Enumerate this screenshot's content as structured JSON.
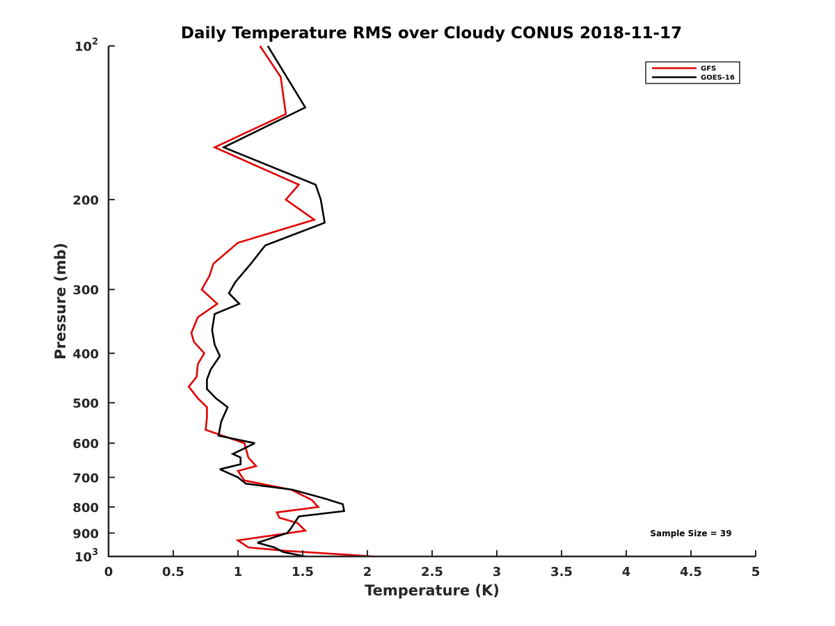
{
  "chart_data": {
    "type": "line",
    "title": "Daily Temperature RMS over Cloudy CONUS 2018-11-17",
    "xlabel": "Temperature (K)",
    "ylabel": "Pressure (mb)",
    "xlim": [
      0,
      5
    ],
    "ylim": [
      100,
      1000
    ],
    "y_scale": "log",
    "y_reversed": true,
    "grid": false,
    "x_ticks": [
      0,
      0.5,
      1,
      1.5,
      2,
      2.5,
      3,
      3.5,
      4,
      4.5,
      5
    ],
    "x_tick_labels": [
      "0",
      "0.5",
      "1",
      "1.5",
      "2",
      "2.5",
      "3",
      "3.5",
      "4",
      "4.5",
      "5"
    ],
    "y_ticks": [
      {
        "value": 100,
        "base": "10",
        "exp": "2"
      },
      {
        "value": 200,
        "label": "200"
      },
      {
        "value": 300,
        "label": "300"
      },
      {
        "value": 400,
        "label": "400"
      },
      {
        "value": 500,
        "label": "500"
      },
      {
        "value": 600,
        "label": "600"
      },
      {
        "value": 700,
        "label": "700"
      },
      {
        "value": 800,
        "label": "800"
      },
      {
        "value": 900,
        "label": "900"
      },
      {
        "value": 1000,
        "base": "10",
        "exp": "3"
      }
    ],
    "legend_position": "top-right",
    "annotation": "Sample Size = 39",
    "series": [
      {
        "name": "GFS",
        "color": "#e00000",
        "points": [
          [
            1.17,
            100
          ],
          [
            1.33,
            115
          ],
          [
            1.37,
            136
          ],
          [
            0.82,
            158
          ],
          [
            1.47,
            187
          ],
          [
            1.37,
            200
          ],
          [
            1.59,
            219
          ],
          [
            1.0,
            243
          ],
          [
            0.81,
            267
          ],
          [
            0.78,
            282
          ],
          [
            0.72,
            300
          ],
          [
            0.84,
            320
          ],
          [
            0.69,
            340
          ],
          [
            0.64,
            365
          ],
          [
            0.66,
            380
          ],
          [
            0.74,
            400
          ],
          [
            0.69,
            420
          ],
          [
            0.68,
            445
          ],
          [
            0.62,
            465
          ],
          [
            0.69,
            490
          ],
          [
            0.76,
            510
          ],
          [
            0.76,
            535
          ],
          [
            0.75,
            565
          ],
          [
            1.05,
            600
          ],
          [
            1.08,
            640
          ],
          [
            1.14,
            665
          ],
          [
            1.0,
            680
          ],
          [
            1.05,
            710
          ],
          [
            1.41,
            740
          ],
          [
            1.57,
            775
          ],
          [
            1.62,
            800
          ],
          [
            1.3,
            820
          ],
          [
            1.32,
            840
          ],
          [
            1.46,
            860
          ],
          [
            1.52,
            890
          ],
          [
            1.0,
            930
          ],
          [
            1.08,
            960
          ],
          [
            1.37,
            975
          ],
          [
            2.05,
            1000
          ]
        ]
      },
      {
        "name": "GOES-16",
        "color": "#000000",
        "points": [
          [
            1.23,
            100
          ],
          [
            1.52,
            132
          ],
          [
            0.89,
            158
          ],
          [
            1.6,
            187
          ],
          [
            1.64,
            200
          ],
          [
            1.67,
            222
          ],
          [
            1.21,
            246
          ],
          [
            1.1,
            267
          ],
          [
            0.98,
            290
          ],
          [
            0.93,
            305
          ],
          [
            1.01,
            320
          ],
          [
            0.82,
            335
          ],
          [
            0.8,
            360
          ],
          [
            0.82,
            385
          ],
          [
            0.86,
            405
          ],
          [
            0.79,
            430
          ],
          [
            0.76,
            450
          ],
          [
            0.76,
            470
          ],
          [
            0.83,
            490
          ],
          [
            0.92,
            510
          ],
          [
            0.87,
            545
          ],
          [
            0.85,
            580
          ],
          [
            1.13,
            600
          ],
          [
            0.96,
            630
          ],
          [
            1.02,
            640
          ],
          [
            1.02,
            660
          ],
          [
            0.86,
            675
          ],
          [
            1.0,
            700
          ],
          [
            1.06,
            720
          ],
          [
            1.42,
            740
          ],
          [
            1.67,
            770
          ],
          [
            1.81,
            790
          ],
          [
            1.82,
            815
          ],
          [
            1.47,
            835
          ],
          [
            1.41,
            880
          ],
          [
            1.38,
            900
          ],
          [
            1.15,
            940
          ],
          [
            1.28,
            960
          ],
          [
            1.35,
            980
          ],
          [
            1.52,
            1000
          ]
        ]
      }
    ]
  }
}
